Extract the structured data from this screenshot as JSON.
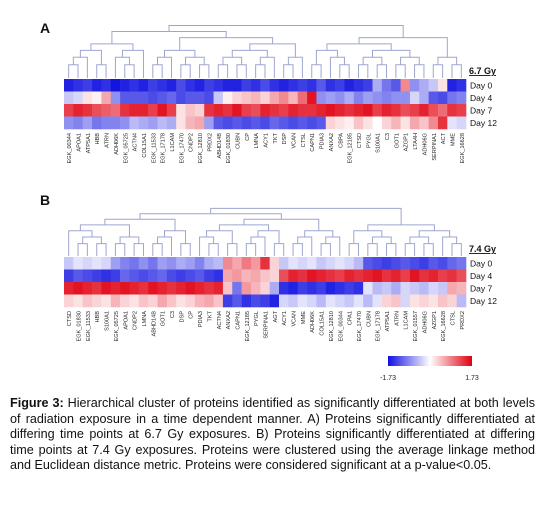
{
  "colors": {
    "low": "#1010e0",
    "mid": "#ffffff",
    "high": "#e00010",
    "dendrogram": "#9ea6d0",
    "text": "#222222"
  },
  "colorbar": {
    "min_label": "-1.73",
    "max_label": "1.73"
  },
  "caption": {
    "label": "Figure 3:",
    "text": " Hierarchical cluster of proteins identified as significantly differentiated at both levels of radiation exposure in a time dependent manner. A) Proteins significantly differentiated at differing time points at 6.7 Gy exposures. B) Proteins significantly differentiated at differing time points at 7.4 Gy exposures. Proteins were clustered using the average linkage method and Euclidean distance metric. Proteins were considered significant at a p-value<0.05."
  },
  "chart_data": [
    {
      "type": "heatmap",
      "panel": "A",
      "dose_label": "6.7 Gy",
      "rows": [
        "Day 0",
        "Day 4",
        "Day 7",
        "Day 12"
      ],
      "columns": [
        "EGK_00344",
        "APOA1",
        "ATP5A1",
        "HBB",
        "ATRN",
        "ADH06K",
        "EGK_05725",
        "ACTN4",
        "COL15A1",
        "EGK_11533",
        "EGK_17178",
        "L1CAM",
        "EGK_17470",
        "CNDP2",
        "EGK_12810",
        "PRDX2",
        "ABHD14B",
        "EGK_01830",
        "CUBN",
        "CP",
        "LMNA",
        "ACY1",
        "TKT",
        "DSP",
        "VCAN",
        "CTSL",
        "CAPN1",
        "PDIA3",
        "ANXA2",
        "CBPA",
        "EGK_12185",
        "CTSD",
        "PYGL",
        "S100A1",
        "C3",
        "GOT1",
        "AZGP1",
        "LTA4H",
        "ADH06G",
        "SERPINA1",
        "ACT",
        "MME",
        "EGK_16628"
      ],
      "values": [
        [
          -1.6,
          -1.5,
          -1.4,
          -1.6,
          -1.5,
          -1.7,
          -1.6,
          -1.5,
          -1.6,
          -1.4,
          -1.5,
          -1.6,
          -1.3,
          -1.5,
          -1.6,
          -1.4,
          -1.5,
          -1.6,
          -1.6,
          -1.4,
          -1.5,
          -1.3,
          -1.5,
          -1.6,
          -1.5,
          -1.4,
          -1.5,
          -1.2,
          -1.5,
          -1.4,
          -1.6,
          -1.5,
          -1.4,
          -0.6,
          -1.0,
          -1.2,
          0.8,
          -0.8,
          -0.6,
          -0.4,
          0.2,
          -1.6,
          -1.5
        ],
        [
          -0.4,
          -0.3,
          0.2,
          0.1,
          0.6,
          -0.8,
          -1.2,
          -1.2,
          -1.2,
          -1.3,
          -1.2,
          -1.1,
          -1.3,
          -1.2,
          -1.2,
          -1.3,
          -0.4,
          0.1,
          0.3,
          0.4,
          0.5,
          0.3,
          0.6,
          0.8,
          0.5,
          1.0,
          1.6,
          -0.8,
          -0.7,
          -0.8,
          -0.6,
          -0.9,
          -0.7,
          -0.8,
          -0.9,
          -0.8,
          -0.8,
          -0.3,
          -0.6,
          -1.2,
          -1.3,
          -1.0,
          -0.9
        ],
        [
          1.3,
          1.5,
          1.4,
          1.2,
          1.1,
          1.0,
          1.4,
          1.5,
          1.5,
          1.3,
          1.6,
          1.3,
          0.2,
          0.4,
          0.3,
          1.4,
          1.5,
          1.4,
          1.6,
          1.3,
          1.2,
          1.5,
          1.4,
          1.3,
          1.5,
          1.4,
          1.4,
          1.5,
          1.6,
          1.5,
          1.4,
          1.5,
          1.6,
          1.3,
          1.5,
          1.4,
          1.2,
          1.3,
          1.5,
          1.2,
          1.0,
          1.4,
          1.3
        ],
        [
          -0.8,
          -0.9,
          -0.7,
          -1.0,
          -0.9,
          -0.9,
          -0.8,
          -0.5,
          -0.6,
          -0.7,
          -0.5,
          -0.6,
          0.2,
          0.5,
          0.6,
          -0.7,
          -1.2,
          -1.3,
          -1.2,
          -1.3,
          -1.2,
          -1.3,
          -1.1,
          -1.2,
          -1.3,
          -1.2,
          -1.3,
          -1.2,
          0.3,
          0.2,
          0.1,
          0.4,
          0.2,
          0.0,
          0.3,
          0.5,
          0.2,
          0.6,
          0.4,
          0.8,
          1.4,
          -0.2,
          -0.3
        ]
      ]
    },
    {
      "type": "heatmap",
      "panel": "B",
      "dose_label": "7.4 Gy",
      "rows": [
        "Day 0",
        "Day 4",
        "Day 7",
        "Day 12"
      ],
      "columns": [
        "CTSD",
        "EGK_01830",
        "EGK_11533",
        "HBB",
        "S100A1",
        "EGK_05725",
        "APOA1",
        "CNDP2",
        "LMNA",
        "ABHD14B",
        "GOT1",
        "C3",
        "DSP",
        "CP",
        "PDIA3",
        "TKT",
        "ACTN4",
        "ANXA2",
        "CAPN1",
        "EGK_12185",
        "PYGL",
        "SERPINA1",
        "AGT",
        "ACY1",
        "VCAN",
        "MME",
        "ADH06K",
        "COL15A1",
        "EGK_12810",
        "EGK_00344",
        "CPA1",
        "EGK_17470",
        "CUBN",
        "EGK_17178",
        "ATP5A1",
        "ATRN",
        "L1CAM",
        "EGK_01557",
        "ADH06G",
        "AZGP1",
        "EGK_16628",
        "CTSL",
        "PRDX2"
      ],
      "values": [
        [
          -0.4,
          -0.2,
          -0.3,
          -0.2,
          -0.3,
          -0.7,
          -0.9,
          -1.0,
          -0.8,
          -1.0,
          -0.7,
          -0.8,
          -0.6,
          -0.7,
          -0.9,
          -0.6,
          -0.5,
          0.8,
          0.6,
          0.9,
          0.7,
          1.4,
          0.3,
          -0.4,
          -0.2,
          -0.3,
          -0.2,
          -0.4,
          -0.3,
          -0.2,
          -0.3,
          -0.5,
          -1.2,
          -1.3,
          -1.4,
          -1.3,
          -1.2,
          -1.3,
          -1.4,
          -1.2,
          -1.3,
          -1.1,
          -1.0
        ],
        [
          -1.4,
          -1.2,
          -1.3,
          -1.4,
          -1.5,
          -1.4,
          -1.1,
          -1.2,
          -1.3,
          -1.2,
          -1.1,
          -1.3,
          -1.4,
          -1.3,
          -1.2,
          -1.4,
          -1.5,
          0.6,
          0.7,
          0.5,
          0.6,
          0.4,
          0.3,
          1.2,
          1.5,
          1.4,
          1.6,
          1.5,
          1.4,
          1.3,
          1.5,
          1.4,
          1.5,
          1.6,
          1.4,
          1.5,
          1.3,
          1.6,
          1.4,
          1.5,
          1.3,
          1.4,
          1.2
        ],
        [
          1.5,
          1.6,
          1.5,
          1.4,
          1.6,
          1.5,
          1.6,
          1.5,
          1.4,
          1.6,
          1.5,
          1.4,
          1.5,
          1.6,
          1.5,
          1.4,
          1.5,
          0.4,
          -1.0,
          0.7,
          0.5,
          0.3,
          -0.6,
          -1.5,
          -1.6,
          -1.4,
          -1.5,
          -1.4,
          -1.6,
          -1.5,
          -1.4,
          -1.5,
          -0.2,
          -0.5,
          -0.4,
          -0.6,
          -0.3,
          -0.4,
          -0.5,
          -0.3,
          -0.4,
          0.6,
          0.5
        ],
        [
          0.3,
          0.2,
          0.4,
          0.3,
          0.2,
          0.5,
          0.3,
          0.2,
          0.4,
          0.3,
          0.6,
          0.4,
          0.2,
          0.3,
          0.5,
          0.6,
          0.4,
          -1.4,
          -1.2,
          -1.5,
          -1.3,
          -1.4,
          -1.6,
          -0.3,
          -0.4,
          -0.2,
          -0.3,
          -0.5,
          -0.2,
          -0.3,
          -0.4,
          -0.2,
          -0.5,
          -0.2,
          0.3,
          0.4,
          -0.3,
          0.2,
          0.3,
          0.2,
          0.4,
          0.3,
          -0.5
        ]
      ]
    }
  ]
}
